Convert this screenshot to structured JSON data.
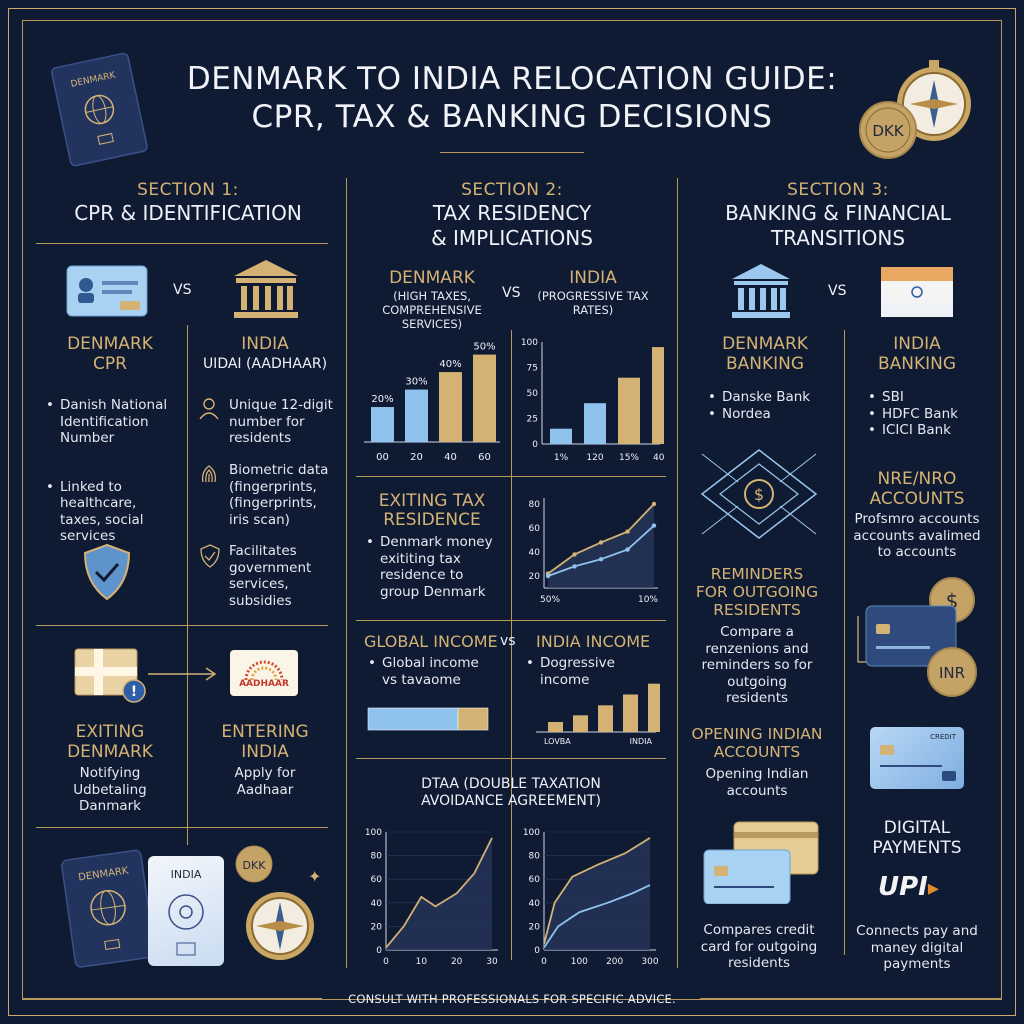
{
  "title_line1": "DENMARK TO INDIA RELOCATION GUIDE:",
  "title_line2": "CPR, TAX & BANKING DECISIONS",
  "coin_label": "DKK",
  "passport_label": "DENMARK",
  "vs": "VS",
  "section1": {
    "label": "SECTION 1:",
    "title": "CPR & IDENTIFICATION",
    "denmark_head1": "DENMARK",
    "denmark_head2": "CPR",
    "india_head1": "INDIA",
    "india_head2": "UIDAI (AADHAAR)",
    "denmark_bullets": [
      "Danish National Identification Number",
      "Linked to healthcare, taxes, social services"
    ],
    "india_items": [
      "Unique 12-digit number for residents",
      "Biometric data (fingerprints, (fingerprints, iris scan)",
      "Facilitates government services, subsidies"
    ],
    "exiting_head": "EXITING DENMARK",
    "exiting_text": "Notifying Udbetaling Danmark",
    "entering_head": "ENTERING INDIA",
    "entering_text": "Apply for Aadhaar",
    "aadhaar_logo": "AADHAAR",
    "india_card_label": "INDIA",
    "bottom_coin": "DKK"
  },
  "section2": {
    "label": "SECTION 2:",
    "title_line1": "TAX RESIDENCY",
    "title_line2": "& IMPLICATIONS",
    "denmark_head": "DENMARK",
    "denmark_sub": "(HIGH TAXES, COMPREHENSIVE SERVICES)",
    "india_head": "INDIA",
    "india_sub": "(PROGRESSIVE TAX RATES)",
    "exiting_head": "EXITING TAX RESIDENCE",
    "exiting_bullet": "Denmark money exititing tax residence to group Denmark",
    "global_head": "GLOBAL INCOME",
    "vs_small": "vs",
    "india_income_head": "INDIA INCOME",
    "global_bullet": "Global income vs tavaome",
    "india_bullet": "Dogressive income",
    "dtaa_line1": "DTAA (DOUBLE TAXATION",
    "dtaa_line2": "AVOIDANCE AGREEMENT)"
  },
  "section3": {
    "label": "SECTION 3:",
    "title_line1": "BANKING & FINANCIAL",
    "title_line2": "TRANSITIONS",
    "denmark_head1": "DENMARK",
    "denmark_head2": "BANKING",
    "denmark_banks": [
      "Danske Bank",
      "Nordea"
    ],
    "india_head1": "INDIA",
    "india_head2": "BANKING",
    "india_banks": [
      "SBI",
      "HDFC Bank",
      "ICICI Bank"
    ],
    "nre_head1": "NRE/NRO",
    "nre_head2": "ACCOUNTS",
    "nre_text": "Profsmro accounts accounts avalimed to accounts",
    "reminders_head": "REMINDERS FOR OUTGOING RESIDENTS",
    "reminders_text": "Compare a renzenions and reminders so for outgoing residents",
    "opening_head": "OPENING INDIAN ACCOUNTS",
    "opening_text": "Opening Indian accounts",
    "inr_label": "INR",
    "credit_label": "CREDIT",
    "digital_head1": "DIGITAL",
    "digital_head2": "PAYMENTS",
    "upi_label": "UPI",
    "compares_text": "Compares credit card for outgoing residents",
    "connects_text": "Connects pay and maney digital payments"
  },
  "footer": "CONSULT WITH PROFESSIONALS FOR SPECIFIC ADVICE.",
  "chart_data": [
    {
      "type": "bar",
      "title": "",
      "categories": [
        "00",
        "20",
        "40",
        "60"
      ],
      "values": [
        20,
        30,
        40,
        50
      ],
      "data_labels": [
        "20%",
        "30%",
        "40%",
        "50%"
      ],
      "colors": [
        "#8fc3ee",
        "#8fc3ee",
        "#d4b274",
        "#d4b274"
      ]
    },
    {
      "type": "bar",
      "title": "",
      "categories": [
        "1%",
        "120",
        "15%",
        "40%"
      ],
      "values": [
        15,
        40,
        65,
        95
      ],
      "yticks": [
        0,
        25,
        50,
        75,
        100
      ],
      "ylim": [
        0,
        100
      ],
      "colors": [
        "#8fc3ee",
        "#8fc3ee",
        "#d4b274",
        "#d4b274"
      ]
    },
    {
      "type": "line",
      "title": "",
      "x_labels": [
        "50%",
        "10%"
      ],
      "yticks": [
        20,
        40,
        60,
        80
      ],
      "series": [
        {
          "color": "#d4b274",
          "values": [
            22,
            38,
            48,
            57,
            80
          ]
        },
        {
          "color": "#8fc3ee",
          "values": [
            20,
            28,
            34,
            42,
            62
          ]
        }
      ]
    },
    {
      "type": "bar",
      "title": "",
      "orientation": "horizontal",
      "values": [
        0.75,
        0.25
      ],
      "colors": [
        "#8fc3ee",
        "#d4b274"
      ]
    },
    {
      "type": "bar",
      "title": "",
      "categories": [
        "LOVBA",
        "",
        "",
        "",
        "INDIA"
      ],
      "values": [
        12,
        20,
        32,
        45,
        58
      ],
      "colors": [
        "#d4b274",
        "#d4b274",
        "#d4b274",
        "#d4b274",
        "#d4b274"
      ]
    },
    {
      "type": "line",
      "title": "",
      "xticks": [
        "0",
        "10",
        "20",
        "30"
      ],
      "yticks": [
        0,
        20,
        40,
        60,
        80,
        100
      ],
      "ylim": [
        0,
        100
      ],
      "series": [
        {
          "color": "#d4b274",
          "values": [
            [
              0,
              2
            ],
            [
              5,
              20
            ],
            [
              10,
              45
            ],
            [
              14,
              37
            ],
            [
              20,
              48
            ],
            [
              25,
              65
            ],
            [
              30,
              95
            ]
          ]
        }
      ]
    },
    {
      "type": "line",
      "title": "",
      "xticks": [
        "0",
        "100",
        "200",
        "300"
      ],
      "yticks": [
        0,
        20,
        40,
        60,
        80,
        100
      ],
      "ylim": [
        0,
        100
      ],
      "series": [
        {
          "color": "#d4b274",
          "values": [
            [
              0,
              5
            ],
            [
              30,
              40
            ],
            [
              80,
              62
            ],
            [
              150,
              72
            ],
            [
              230,
              82
            ],
            [
              300,
              95
            ]
          ]
        },
        {
          "color": "#8fc3ee",
          "values": [
            [
              0,
              2
            ],
            [
              40,
              20
            ],
            [
              100,
              32
            ],
            [
              180,
              40
            ],
            [
              250,
              48
            ],
            [
              300,
              55
            ]
          ]
        }
      ]
    }
  ]
}
